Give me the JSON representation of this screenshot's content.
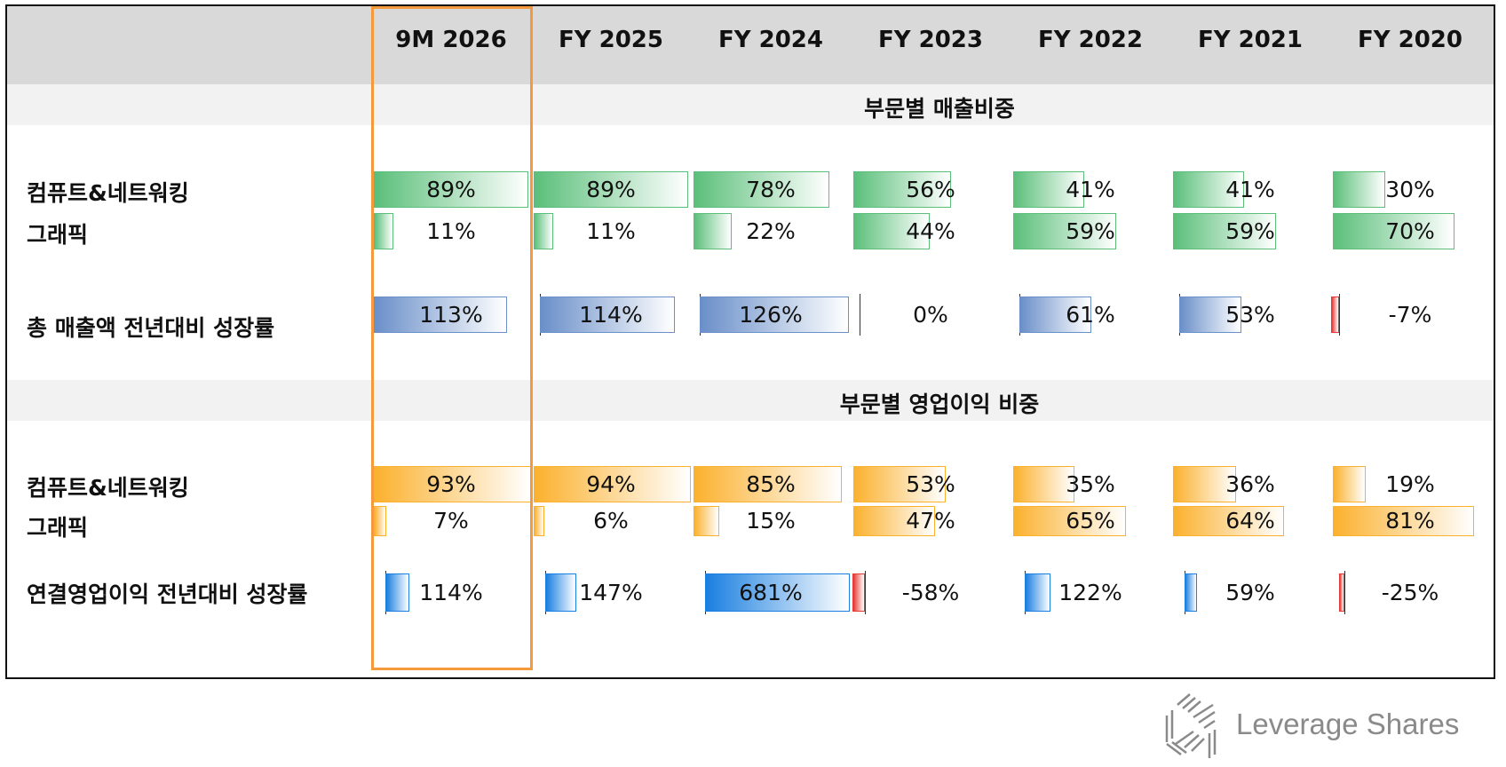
{
  "columns": [
    "9M 2026",
    "FY 2025",
    "FY 2024",
    "FY 2023",
    "FY 2022",
    "FY 2021",
    "FY 2020"
  ],
  "sections": {
    "revenue_title": "부문별 매출비중",
    "oi_title": "부문별 영업이익 비중"
  },
  "chart_data": {
    "type": "table",
    "rows": [
      {
        "label": "컴퓨트&네트워킹",
        "kind": "share",
        "color": "#5bbf7a",
        "values": [
          89,
          89,
          78,
          56,
          41,
          41,
          30
        ]
      },
      {
        "label": "그래픽",
        "kind": "share",
        "color": "#5bbf7a",
        "values": [
          11,
          11,
          22,
          44,
          59,
          59,
          70
        ]
      },
      {
        "label": "총 매출액 전년대비 성장률",
        "kind": "growth",
        "color": "#6a8fc9",
        "neg_color": "#e53935",
        "values": [
          113,
          114,
          126,
          0,
          61,
          53,
          -7
        ]
      },
      {
        "label": "컴퓨트&네트워킹",
        "kind": "share",
        "color": "#fbb12e",
        "values": [
          93,
          94,
          85,
          53,
          35,
          36,
          19
        ]
      },
      {
        "label": "그래픽",
        "kind": "share",
        "color": "#fbb12e",
        "values": [
          7,
          6,
          15,
          47,
          65,
          64,
          81
        ]
      },
      {
        "label": "연결영업이익 전년대비 성장률",
        "kind": "oigrowth",
        "color": "#1a7fe0",
        "neg_color": "#e53935",
        "values": [
          114,
          147,
          681,
          -58,
          122,
          59,
          -25
        ]
      }
    ],
    "highlight_column": "9M 2026"
  },
  "logo": {
    "text": "Leverage Shares",
    "icon": "leverage-shares-logo-icon"
  }
}
